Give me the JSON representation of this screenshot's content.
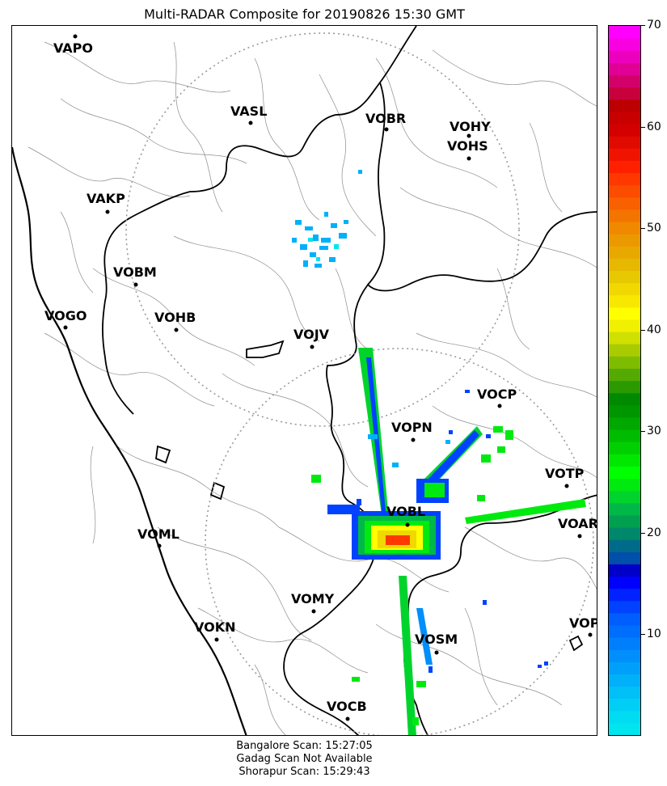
{
  "title": "Multi-RADAR Composite for 20190826 15:30 GMT",
  "stations": [
    {
      "code": "VAPO"
    },
    {
      "code": "VASL"
    },
    {
      "code": "VOBR"
    },
    {
      "code": "VOHY"
    },
    {
      "code": "VOHS"
    },
    {
      "code": "VAKP"
    },
    {
      "code": "VOBM"
    },
    {
      "code": "VOGO"
    },
    {
      "code": "VOHB"
    },
    {
      "code": "VOJV"
    },
    {
      "code": "VOCP"
    },
    {
      "code": "VOPN"
    },
    {
      "code": "VOTP"
    },
    {
      "code": "VOBL"
    },
    {
      "code": "VOAR"
    },
    {
      "code": "VOML"
    },
    {
      "code": "VOMY"
    },
    {
      "code": "VOKN"
    },
    {
      "code": "VOPC"
    },
    {
      "code": "VOSM"
    },
    {
      "code": "VOCB"
    }
  ],
  "colorbar": {
    "min": 0,
    "max": 70,
    "ticks": [
      "10",
      "20",
      "30",
      "40",
      "50",
      "60",
      "70"
    ],
    "colors": [
      "#00e5ee",
      "#00dcf2",
      "#00cff5",
      "#00c0f7",
      "#00b0f9",
      "#00a0fa",
      "#008ffb",
      "#007ffc",
      "#006efd",
      "#005efe",
      "#0042ff",
      "#0022ff",
      "#0000ff",
      "#0000c8",
      "#004faa",
      "#006a8a",
      "#00886a",
      "#00a050",
      "#00b848",
      "#00d42c",
      "#00ea10",
      "#00ff00",
      "#00e800",
      "#00d000",
      "#00bc00",
      "#00a800",
      "#009600",
      "#008a00",
      "#2a9a00",
      "#54aa00",
      "#7ebc00",
      "#a8cc00",
      "#d0e000",
      "#f0f000",
      "#ffff00",
      "#f8e800",
      "#f0d800",
      "#e8c800",
      "#e6b800",
      "#e8a800",
      "#ec9800",
      "#f08800",
      "#f47400",
      "#f86000",
      "#fc4c00",
      "#ff3800",
      "#ff2000",
      "#f01400",
      "#e00a00",
      "#d40000",
      "#c80000",
      "#bc0000",
      "#c8003c",
      "#d4006a",
      "#e00096",
      "#ec00be",
      "#f800e0",
      "#ff00ff"
    ]
  },
  "footer": {
    "line1": "Bangalore Scan: 15:27:05",
    "line2": "Gadag Scan Not Available",
    "line3": "Shorapur Scan: 15:29:43"
  }
}
